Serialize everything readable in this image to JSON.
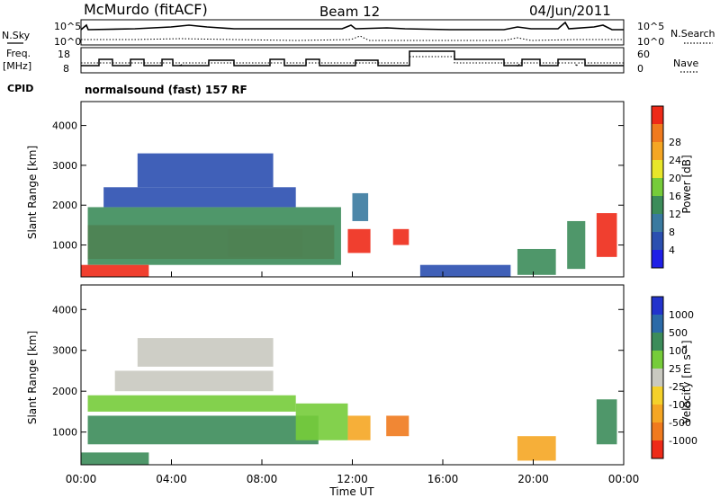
{
  "header": {
    "station": "McMurdo (fitACF)",
    "beam": "Beam 12",
    "date": "04/Jun/2011"
  },
  "strips": {
    "nsky_label": "N.Sky",
    "nsky_ticks": [
      "10^5",
      "10^0"
    ],
    "nsearch_label": "N.Search",
    "nsearch_ticks": [
      "10^5",
      "10^0"
    ],
    "freq_label_1": "Freq.",
    "freq_label_2": "[MHz]",
    "freq_ticks": [
      "18",
      "8"
    ],
    "nave_label": "Nave",
    "nave_ticks": [
      "60",
      "0"
    ],
    "cpid_label": "CPID",
    "cpid_value": "normalsound (fast) 157 RF"
  },
  "palettes": {
    "power": [
      "#1f1fe6",
      "#2b4fb0",
      "#3a7aa0",
      "#3c8c5a",
      "#76cc3a",
      "#e8e62a",
      "#f5a623",
      "#f07a1e",
      "#ee2a18",
      "#ee2a18"
    ],
    "velocity": [
      "#2233cc",
      "#2b6aa8",
      "#3c8c5a",
      "#76cc3a",
      "#c9c9c0",
      "#f5d12a",
      "#f5a623",
      "#f07a1e",
      "#ee2a18"
    ]
  },
  "chart_data": [
    {
      "type": "heatmap",
      "name": "power",
      "ylabel": "Slant Range [km]",
      "yticks": [
        "1000",
        "2000",
        "3000",
        "4000"
      ],
      "ylim": [
        200,
        4600
      ],
      "xlim": [
        0,
        24
      ],
      "colorbar_label": "Power [dB]",
      "colorbar_ticks": [
        "4",
        "8",
        "12",
        "16",
        "20",
        "24",
        "28"
      ],
      "colorbar_range": [
        0,
        30
      ],
      "regions": [
        {
          "t0": 0.3,
          "t1": 11.2,
          "r0": 650,
          "r1": 1500,
          "level": 8
        },
        {
          "t0": 6.5,
          "t1": 9.8,
          "r0": 700,
          "r1": 1400,
          "level": 9
        },
        {
          "t0": 0.3,
          "t1": 11.5,
          "r0": 500,
          "r1": 1950,
          "level": 3
        },
        {
          "t0": 1.0,
          "t1": 9.5,
          "r0": 1950,
          "r1": 2450,
          "level": 1
        },
        {
          "t0": 2.5,
          "t1": 8.5,
          "r0": 2450,
          "r1": 3300,
          "level": 1
        },
        {
          "t0": 0.0,
          "t1": 3.0,
          "r0": 200,
          "r1": 500,
          "level": 8
        },
        {
          "t0": 11.8,
          "t1": 12.8,
          "r0": 800,
          "r1": 1400,
          "level": 8
        },
        {
          "t0": 13.8,
          "t1": 14.5,
          "r0": 1000,
          "r1": 1400,
          "level": 8
        },
        {
          "t0": 12.0,
          "t1": 12.7,
          "r0": 1600,
          "r1": 2300,
          "level": 2
        },
        {
          "t0": 19.3,
          "t1": 21.0,
          "r0": 250,
          "r1": 900,
          "level": 3
        },
        {
          "t0": 21.5,
          "t1": 22.3,
          "r0": 400,
          "r1": 1600,
          "level": 3
        },
        {
          "t0": 22.8,
          "t1": 23.7,
          "r0": 700,
          "r1": 1800,
          "level": 8
        },
        {
          "t0": 15.0,
          "t1": 19.0,
          "r0": 200,
          "r1": 500,
          "level": 1
        }
      ]
    },
    {
      "type": "heatmap",
      "name": "velocity",
      "ylabel": "Slant Range [km]",
      "xlabel": "Time UT",
      "yticks": [
        "1000",
        "2000",
        "3000",
        "4000"
      ],
      "ylim": [
        200,
        4600
      ],
      "xlim": [
        0,
        24
      ],
      "xticks": [
        "00:00",
        "04:00",
        "08:00",
        "12:00",
        "16:00",
        "20:00",
        "00:00"
      ],
      "colorbar_label": "Velocity [m s⁻¹]",
      "colorbar_ticks": [
        "1000",
        "500",
        "100",
        "25",
        "-25",
        "-100",
        "-500",
        "-1000"
      ],
      "regions": [
        {
          "t0": 0.3,
          "t1": 10.5,
          "r0": 700,
          "r1": 1400,
          "level": 2
        },
        {
          "t0": 0.3,
          "t1": 9.5,
          "r0": 1500,
          "r1": 1900,
          "level": 3
        },
        {
          "t0": 9.5,
          "t1": 11.8,
          "r0": 800,
          "r1": 1700,
          "level": 3
        },
        {
          "t0": 11.8,
          "t1": 12.8,
          "r0": 800,
          "r1": 1400,
          "level": 6
        },
        {
          "t0": 13.5,
          "t1": 14.5,
          "r0": 900,
          "r1": 1400,
          "level": 7
        },
        {
          "t0": 1.5,
          "t1": 8.5,
          "r0": 2000,
          "r1": 2500,
          "level": 4
        },
        {
          "t0": 2.5,
          "t1": 8.5,
          "r0": 2600,
          "r1": 3300,
          "level": 4
        },
        {
          "t0": 0.0,
          "t1": 3.0,
          "r0": 200,
          "r1": 500,
          "level": 2
        },
        {
          "t0": 19.3,
          "t1": 21.0,
          "r0": 300,
          "r1": 900,
          "level": 6
        },
        {
          "t0": 22.8,
          "t1": 23.7,
          "r0": 700,
          "r1": 1800,
          "level": 2
        }
      ]
    }
  ]
}
